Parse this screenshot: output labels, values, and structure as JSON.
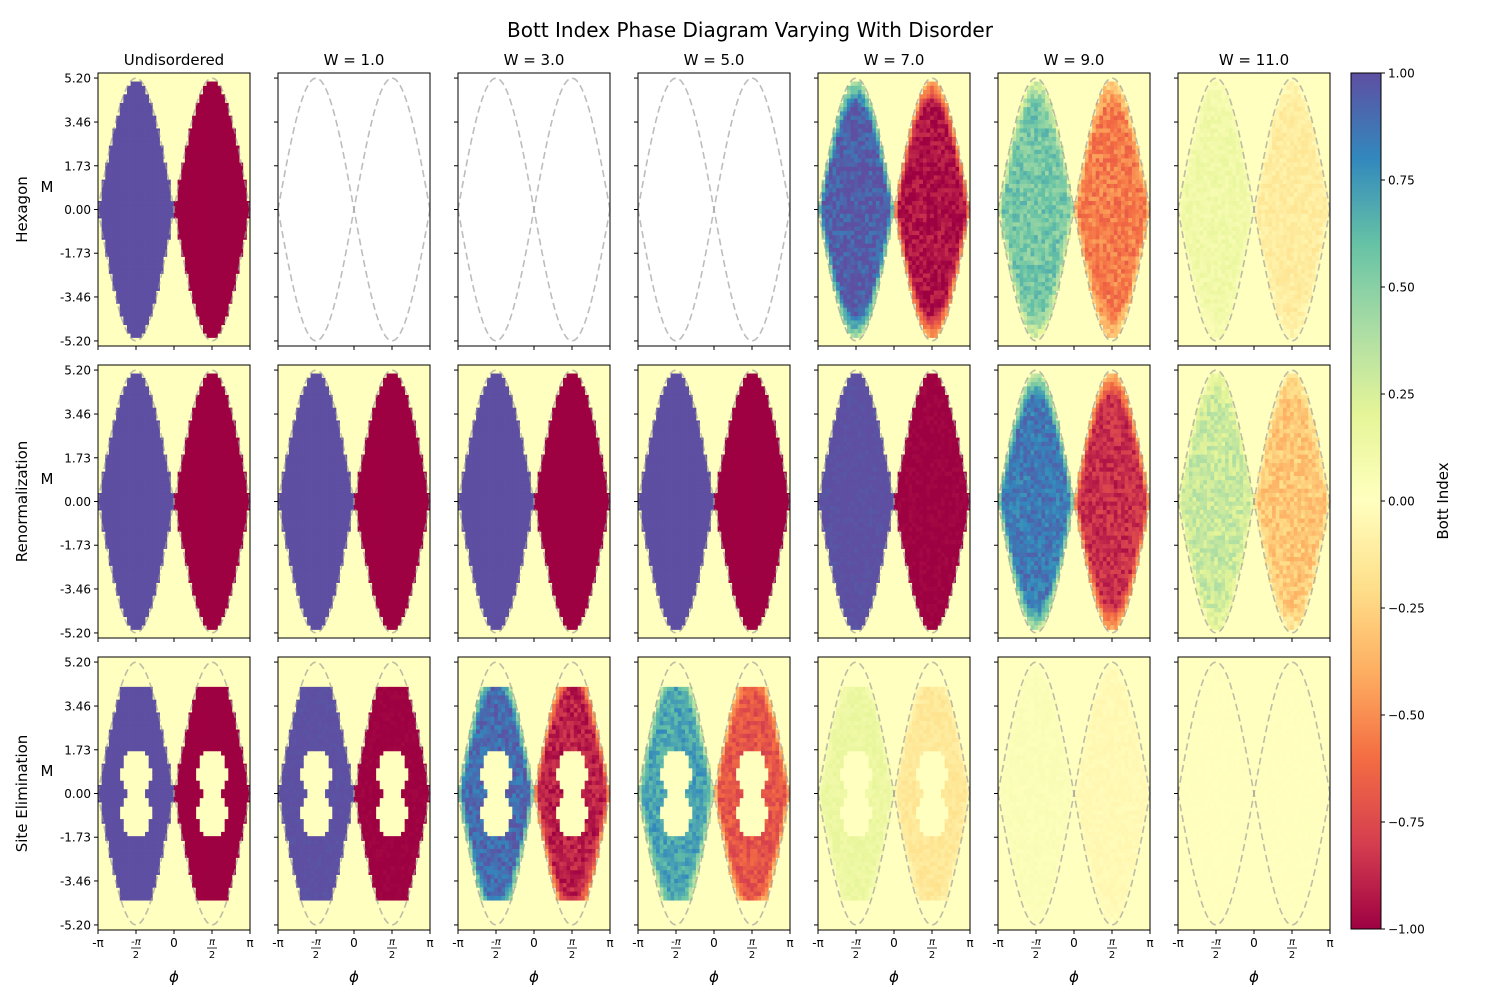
{
  "figure": {
    "title": "Bott Index Phase Diagram Varying With Disorder"
  },
  "chart_data": {
    "type": "heatmap",
    "title": "Bott Index Phase Diagram Varying With Disorder",
    "columns": [
      "Undisordered",
      "W = 1.0",
      "W = 3.0",
      "W = 5.0",
      "W = 7.0",
      "W = 9.0",
      "W = 11.0"
    ],
    "rows": [
      "Hexagon",
      "Renormalization",
      "Site Elimination"
    ],
    "xlabel": "ϕ",
    "ylabel": "M",
    "xlim": [
      -3.14159,
      3.14159
    ],
    "ylim": [
      -5.4,
      5.4
    ],
    "x_ticks": [
      -3.14159,
      -1.5708,
      0,
      1.5708,
      3.14159
    ],
    "x_tick_labels": [
      "-π",
      "-π/2",
      "0",
      "π/2",
      "π"
    ],
    "y_ticks": [
      5.2,
      3.46,
      1.73,
      0.0,
      -1.73,
      -3.46,
      -5.2
    ],
    "y_tick_labels": [
      "5.20",
      "3.46",
      "1.73",
      "0.00",
      "-1.73",
      "-3.46",
      "-5.20"
    ],
    "boundary": "M = ±5.196·sin(ϕ) dashed gray curves",
    "colorbar": {
      "label": "Bott Index",
      "range": [
        -1.0,
        1.0
      ],
      "ticks": [
        1.0,
        0.75,
        0.5,
        0.25,
        0.0,
        -0.25,
        -0.5,
        -0.75,
        -1.0
      ],
      "tick_labels": [
        "1.00",
        "0.75",
        "0.50",
        "0.25",
        "0.00",
        "−0.25",
        "−0.50",
        "−0.75",
        "−1.00"
      ],
      "colormap": "Spectral"
    },
    "panels": [
      [
        {
          "amplitude": 1.0,
          "hole": false,
          "empty": false,
          "noise": 0.0
        },
        {
          "amplitude": 0.0,
          "hole": false,
          "empty": true,
          "noise": 0.0
        },
        {
          "amplitude": 0.0,
          "hole": false,
          "empty": true,
          "noise": 0.0
        },
        {
          "amplitude": 0.0,
          "hole": false,
          "empty": true,
          "noise": 0.0
        },
        {
          "amplitude": 0.95,
          "hole": false,
          "empty": false,
          "noise": 0.1
        },
        {
          "amplitude": 0.55,
          "hole": false,
          "empty": false,
          "noise": 0.12
        },
        {
          "amplitude": 0.12,
          "hole": false,
          "empty": false,
          "noise": 0.05
        }
      ],
      [
        {
          "amplitude": 1.0,
          "hole": false,
          "empty": false,
          "noise": 0.0
        },
        {
          "amplitude": 1.0,
          "hole": false,
          "empty": false,
          "noise": 0.0
        },
        {
          "amplitude": 1.0,
          "hole": false,
          "empty": false,
          "noise": 0.0
        },
        {
          "amplitude": 1.0,
          "hole": false,
          "empty": false,
          "noise": 0.0
        },
        {
          "amplitude": 1.0,
          "hole": false,
          "empty": false,
          "noise": 0.03
        },
        {
          "amplitude": 0.85,
          "hole": false,
          "empty": false,
          "noise": 0.1
        },
        {
          "amplitude": 0.3,
          "hole": false,
          "empty": false,
          "noise": 0.1
        }
      ],
      [
        {
          "amplitude": 1.0,
          "hole": true,
          "empty": false,
          "noise": 0.0
        },
        {
          "amplitude": 1.0,
          "hole": true,
          "empty": false,
          "noise": 0.02
        },
        {
          "amplitude": 0.9,
          "hole": true,
          "empty": false,
          "noise": 0.1
        },
        {
          "amplitude": 0.7,
          "hole": true,
          "empty": false,
          "noise": 0.1
        },
        {
          "amplitude": 0.15,
          "hole": true,
          "empty": false,
          "noise": 0.04
        },
        {
          "amplitude": 0.04,
          "hole": false,
          "empty": false,
          "noise": 0.02
        },
        {
          "amplitude": 0.0,
          "hole": false,
          "empty": false,
          "noise": 0.01
        }
      ]
    ]
  }
}
